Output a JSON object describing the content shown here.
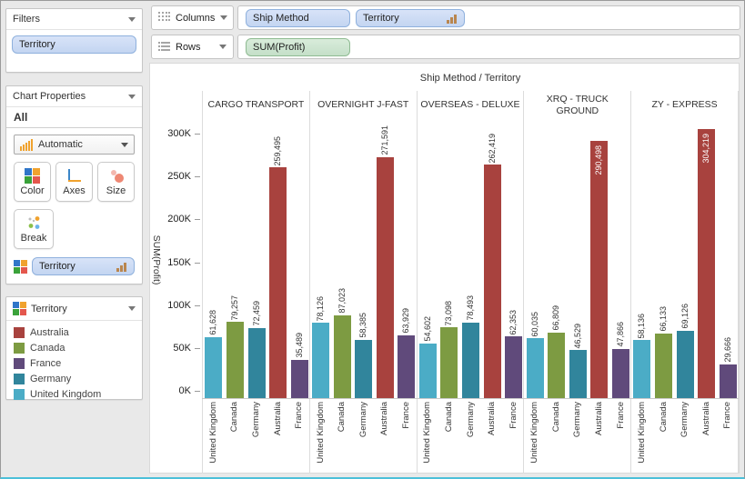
{
  "filters_panel": {
    "title": "Filters",
    "pill": "Territory"
  },
  "chart_properties": {
    "title": "Chart Properties",
    "scope_label": "All",
    "type_selector": "Automatic",
    "color_button": "Color",
    "axes_button": "Axes",
    "size_button": "Size",
    "break_button": "Break",
    "color_by_pill": "Territory"
  },
  "legend": {
    "title": "Territory",
    "items": [
      {
        "label": "Australia",
        "color": "#a8423e"
      },
      {
        "label": "Canada",
        "color": "#7d9b42"
      },
      {
        "label": "France",
        "color": "#604a7b"
      },
      {
        "label": "Germany",
        "color": "#31859c"
      },
      {
        "label": "United Kingdom",
        "color": "#4bacc6"
      }
    ]
  },
  "shelves": {
    "columns_label": "Columns",
    "rows_label": "Rows",
    "columns_pills": [
      "Ship Method",
      "Territory"
    ],
    "rows_pills": [
      "SUM(Profit)"
    ]
  },
  "chart_data": {
    "type": "bar",
    "title": "Ship Method / Territory",
    "ylabel": "SUM(Profit)",
    "ylim": [
      0,
      300000
    ],
    "ytick_step": 50000,
    "ytick_labels": [
      "0K",
      "50K",
      "100K",
      "150K",
      "200K",
      "250K",
      "300K"
    ],
    "grid": false,
    "legend_position": "left-panel",
    "categories": [
      "United Kingdom",
      "Canada",
      "Germany",
      "Australia",
      "France"
    ],
    "category_colors": [
      "#4bacc6",
      "#7d9b42",
      "#31859c",
      "#a8423e",
      "#604a7b"
    ],
    "panels": [
      {
        "name": "CARGO TRANSPORT",
        "values": [
          61628,
          79257,
          72459,
          259495,
          35489
        ]
      },
      {
        "name": "OVERNIGHT J-FAST",
        "values": [
          78126,
          87023,
          58385,
          271591,
          63929
        ]
      },
      {
        "name": "OVERSEAS - DELUXE",
        "values": [
          54602,
          73098,
          78493,
          262419,
          62353
        ]
      },
      {
        "name": "XRQ - TRUCK GROUND",
        "values": [
          60035,
          66809,
          46529,
          290498,
          47866
        ]
      },
      {
        "name": "ZY - EXPRESS",
        "values": [
          58136,
          66133,
          69126,
          304219,
          29666
        ]
      }
    ]
  }
}
